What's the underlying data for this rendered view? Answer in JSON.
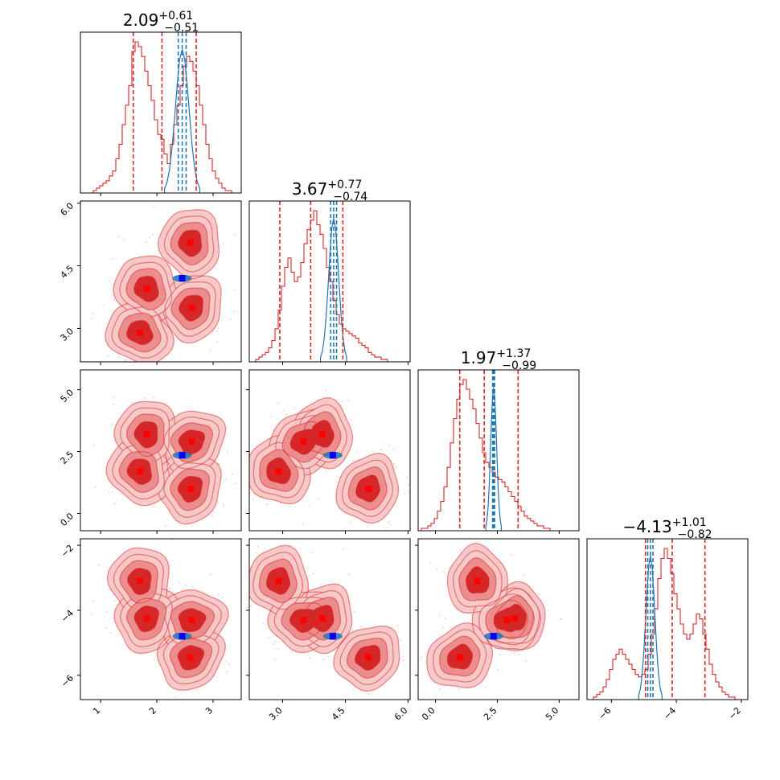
{
  "chart_data": {
    "type": "corner",
    "parameters": 4,
    "colors": {
      "posterior_a": "#d62728",
      "posterior_a_fill_light": "#f7c9c9",
      "posterior_a_fill_mid": "#ec8e8e",
      "posterior_a_scatter": "#f4b8b8",
      "posterior_b": "#1f77b4",
      "marker_a": "#ff0000",
      "marker_b": "#0000ff"
    },
    "titles": [
      {
        "median": "2.09",
        "plus": "+0.61",
        "minus": "−0.51"
      },
      {
        "median": "3.67",
        "plus": "+0.77",
        "minus": "−0.74"
      },
      {
        "median": "1.97",
        "plus": "+1.37",
        "minus": "−0.99"
      },
      {
        "median": "−4.13",
        "plus": "+1.01",
        "minus": "−0.82"
      }
    ],
    "axis_ranges": [
      [
        0.64,
        3.5
      ],
      [
        2.2,
        6.05
      ],
      [
        -0.7,
        5.8
      ],
      [
        -6.75,
        -1.8
      ]
    ],
    "ticks": [
      {
        "values": [
          1,
          2,
          3
        ],
        "labels": [
          "1",
          "2",
          "3"
        ]
      },
      {
        "values": [
          3.0,
          4.5,
          6.0
        ],
        "labels": [
          "3.0",
          "4.5",
          "6.0"
        ]
      },
      {
        "values": [
          0.0,
          2.5,
          5.0
        ],
        "labels": [
          "0.0",
          "2.5",
          "5.0"
        ]
      },
      {
        "values": [
          -6,
          -4,
          -2
        ],
        "labels": [
          "−6",
          "−4",
          "−2"
        ]
      }
    ],
    "mixture_modes": [
      [
        1.7,
        2.9,
        1.7,
        -3.1
      ],
      [
        1.82,
        3.95,
        3.2,
        -4.25
      ],
      [
        2.6,
        5.05,
        1.0,
        -5.45
      ],
      [
        2.62,
        3.5,
        2.9,
        -4.3
      ]
    ],
    "truth_point_b": [
      2.45,
      4.2,
      2.35,
      -4.8
    ],
    "quantiles_a": [
      [
        1.58,
        2.09,
        2.7
      ],
      [
        2.93,
        3.67,
        4.44
      ],
      [
        0.98,
        1.97,
        3.34
      ],
      [
        -4.95,
        -4.13,
        -3.12
      ]
    ],
    "quantiles_b": [
      [
        2.38,
        2.45,
        2.52
      ],
      [
        4.15,
        4.22,
        4.29
      ],
      [
        2.31,
        2.35,
        2.39
      ],
      [
        -4.88,
        -4.8,
        -4.72
      ]
    ],
    "histograms_a": [
      [
        0,
        0,
        0,
        0,
        1,
        2,
        3,
        4,
        5,
        7,
        9,
        14,
        20,
        28,
        36,
        44,
        58,
        62,
        60,
        56,
        50,
        44,
        38,
        30,
        24,
        22,
        16,
        12,
        20,
        28,
        36,
        44,
        52,
        56,
        54,
        50,
        44,
        36,
        28,
        20,
        14,
        9,
        6,
        4,
        2,
        1,
        1,
        0,
        0,
        0
      ],
      [
        0,
        0,
        1,
        2,
        3,
        4,
        6,
        9,
        14,
        22,
        32,
        40,
        44,
        38,
        34,
        36,
        42,
        50,
        56,
        60,
        64,
        58,
        54,
        48,
        40,
        34,
        26,
        20,
        16,
        14,
        13,
        12,
        11,
        10,
        8,
        7,
        6,
        4,
        3,
        2,
        2,
        1,
        1,
        0,
        0,
        0,
        0,
        0,
        0,
        0
      ],
      [
        0,
        1,
        1,
        2,
        3,
        5,
        8,
        12,
        18,
        26,
        36,
        46,
        54,
        60,
        62,
        58,
        54,
        50,
        44,
        38,
        32,
        28,
        26,
        24,
        22,
        21,
        20,
        18,
        16,
        14,
        12,
        10,
        8,
        6,
        5,
        4,
        3,
        2,
        2,
        1,
        1,
        0,
        0,
        0,
        0,
        0,
        0,
        0,
        0,
        0
      ],
      [
        0,
        0,
        1,
        2,
        3,
        5,
        8,
        12,
        16,
        18,
        20,
        18,
        16,
        14,
        12,
        10,
        9,
        10,
        12,
        18,
        26,
        36,
        48,
        56,
        60,
        56,
        50,
        42,
        36,
        30,
        26,
        24,
        26,
        30,
        34,
        32,
        26,
        20,
        14,
        10,
        7,
        5,
        3,
        2,
        1,
        1,
        0,
        0,
        0,
        0
      ]
    ],
    "histograms_b_peak_fraction": 0.95
  }
}
